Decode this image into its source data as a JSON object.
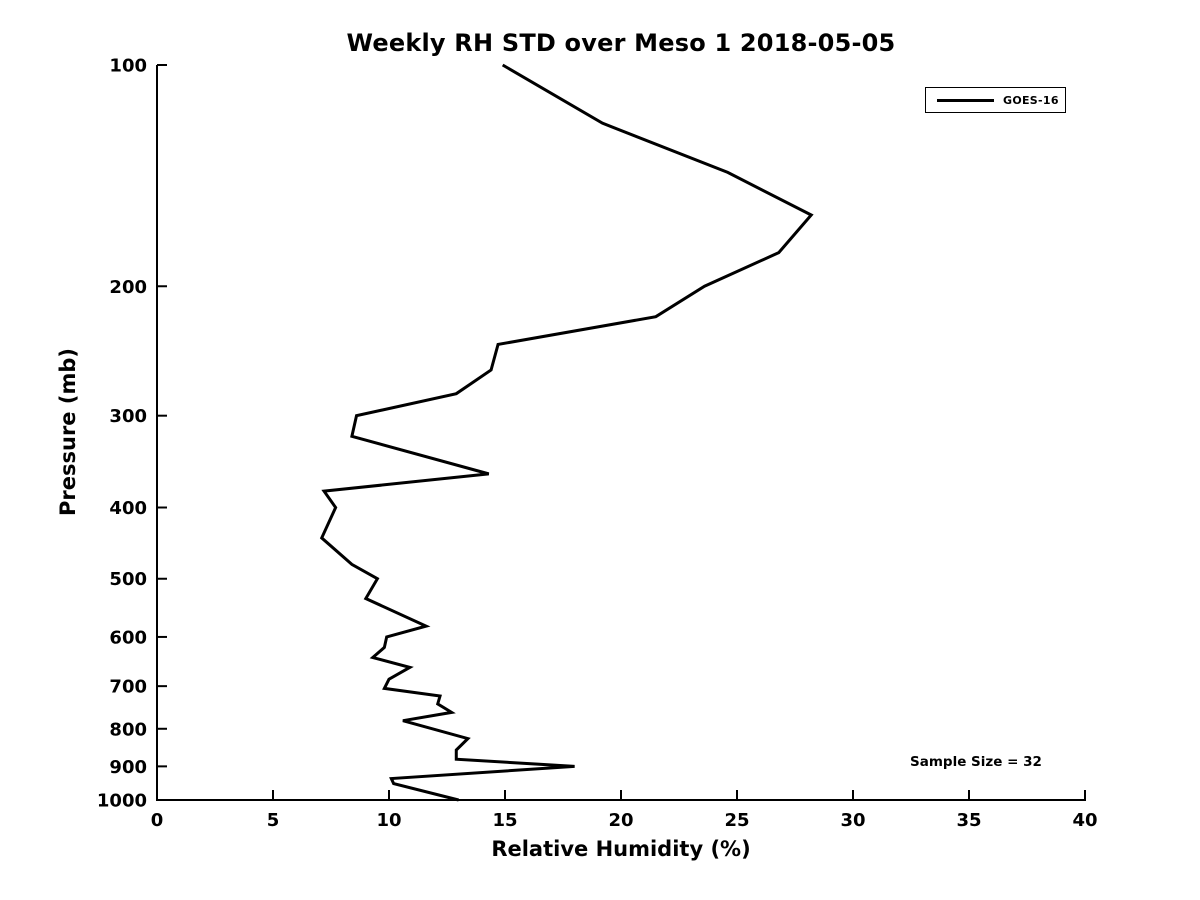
{
  "page": {
    "background": "#ffffff",
    "foreground": "#000000"
  },
  "chart_data": {
    "type": "line",
    "title": "Weekly RH STD over Meso 1 2018-05-05",
    "xlabel": "Relative Humidity (%)",
    "ylabel": "Pressure (mb)",
    "xlim": [
      0,
      40
    ],
    "ylim": [
      100,
      1000
    ],
    "yscale": "log",
    "y_axis_inverted": "pressure decreases upward (100 mb at top, 1000 mb at bottom)",
    "xticks": [
      0,
      5,
      10,
      15,
      20,
      25,
      30,
      35,
      40
    ],
    "yticks": [
      100,
      200,
      300,
      400,
      500,
      600,
      700,
      800,
      900,
      1000
    ],
    "grid": false,
    "line_color": "#000000",
    "line_width": 3,
    "legend": {
      "position": "upper-right",
      "entries": [
        {
          "label": "GOES-16",
          "color": "#000000"
        }
      ]
    },
    "annotation": "Sample Size = 32",
    "series": [
      {
        "name": "GOES-16",
        "points_pressure_rh": [
          [
            100,
            14.9
          ],
          [
            120,
            19.2
          ],
          [
            140,
            24.6
          ],
          [
            160,
            28.2
          ],
          [
            180,
            26.8
          ],
          [
            200,
            23.6
          ],
          [
            220,
            21.5
          ],
          [
            240,
            14.7
          ],
          [
            260,
            14.4
          ],
          [
            280,
            12.9
          ],
          [
            300,
            8.6
          ],
          [
            320,
            8.4
          ],
          [
            360,
            14.3
          ],
          [
            380,
            7.2
          ],
          [
            400,
            7.7
          ],
          [
            440,
            7.1
          ],
          [
            478,
            8.4
          ],
          [
            500,
            9.5
          ],
          [
            532,
            9.0
          ],
          [
            580,
            11.6
          ],
          [
            600,
            9.9
          ],
          [
            620,
            9.8
          ],
          [
            640,
            9.3
          ],
          [
            660,
            10.9
          ],
          [
            685,
            10.0
          ],
          [
            705,
            9.8
          ],
          [
            722,
            12.2
          ],
          [
            740,
            12.1
          ],
          [
            760,
            12.7
          ],
          [
            780,
            10.6
          ],
          [
            825,
            13.4
          ],
          [
            855,
            12.9
          ],
          [
            880,
            12.9
          ],
          [
            900,
            18.0
          ],
          [
            935,
            10.1
          ],
          [
            950,
            10.2
          ],
          [
            1000,
            13.0
          ]
        ]
      }
    ]
  }
}
